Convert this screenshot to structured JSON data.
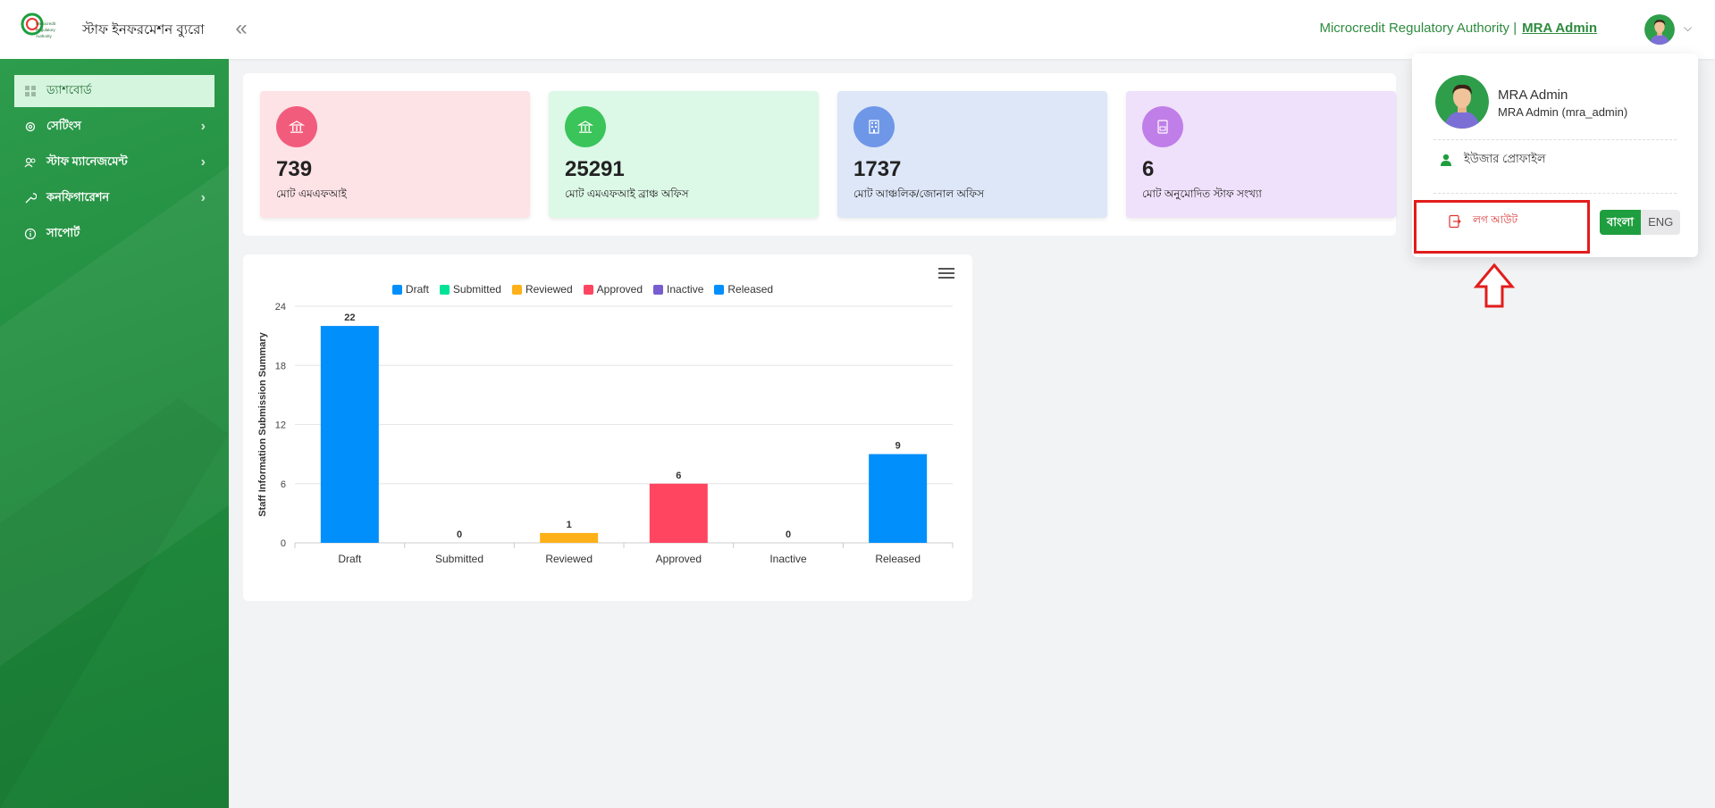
{
  "header": {
    "app_title": "স্টাফ ইনফরমেশন ব্যুরো",
    "logo_text": "Microcredit Regulatory Authority",
    "org_name": "Microcredit Regulatory Authority |",
    "user_link": "MRA Admin",
    "collapse_glyph": "«"
  },
  "sidebar": {
    "items": [
      {
        "label": "ড্যাশবোর্ড",
        "icon": "grid-icon",
        "active": true
      },
      {
        "label": "সেটিংস",
        "icon": "gear-icon",
        "has_children": true
      },
      {
        "label": "স্টাফ ম্যানেজমেন্ট",
        "icon": "users-icon",
        "has_children": true
      },
      {
        "label": "কনফিগারেশন",
        "icon": "wrench-icon",
        "has_children": true
      },
      {
        "label": "সাপোর্ট",
        "icon": "info-icon"
      }
    ]
  },
  "cards": [
    {
      "value": "739",
      "label": "মোট এমএফআই",
      "icon": "bank-icon",
      "bg": "#fde2e6",
      "icon_bg": "#f25c7c"
    },
    {
      "value": "25291",
      "label": "মোট এমএফআই ব্রাঞ্চ অফিস",
      "icon": "bank-icon",
      "bg": "#dcf8e6",
      "icon_bg": "#3bc45a"
    },
    {
      "value": "1737",
      "label": "মোট আঞ্চলিক/জোনাল অফিস",
      "icon": "building-icon",
      "bg": "#dde7f8",
      "icon_bg": "#6f97e8"
    },
    {
      "value": "6",
      "label": "মোট অনুমোদিত স্টাফ সংখ্যা",
      "icon": "document-icon",
      "bg": "#efe0fb",
      "icon_bg": "#c07ee8"
    }
  ],
  "chart_data": {
    "type": "bar",
    "categories": [
      "Draft",
      "Submitted",
      "Reviewed",
      "Approved",
      "Inactive",
      "Released"
    ],
    "values": [
      22,
      0,
      1,
      6,
      0,
      9
    ],
    "colors": [
      "#008ffb",
      "#00e396",
      "#feb019",
      "#ff4560",
      "#775dd0",
      "#008ffb"
    ],
    "legend": [
      {
        "name": "Draft",
        "color": "#008ffb"
      },
      {
        "name": "Submitted",
        "color": "#00e396"
      },
      {
        "name": "Reviewed",
        "color": "#feb019"
      },
      {
        "name": "Approved",
        "color": "#ff4560"
      },
      {
        "name": "Inactive",
        "color": "#775dd0"
      },
      {
        "name": "Released",
        "color": "#008ffb"
      }
    ],
    "ylabel": "Staff Information Submission Summary",
    "ylim": [
      0,
      24
    ],
    "yticks": [
      0,
      6,
      12,
      18,
      24
    ],
    "grid": true,
    "legend_position": "top"
  },
  "dropdown": {
    "name": "MRA Admin",
    "subtitle": "MRA Admin (mra_admin)",
    "profile_label": "ইউজার প্রোফাইল",
    "logout_label": "লগ আউট",
    "lang_bn": "বাংলা",
    "lang_en": "ENG",
    "active_lang": "বাংলা",
    "highlight_color": "#e31c1c"
  }
}
